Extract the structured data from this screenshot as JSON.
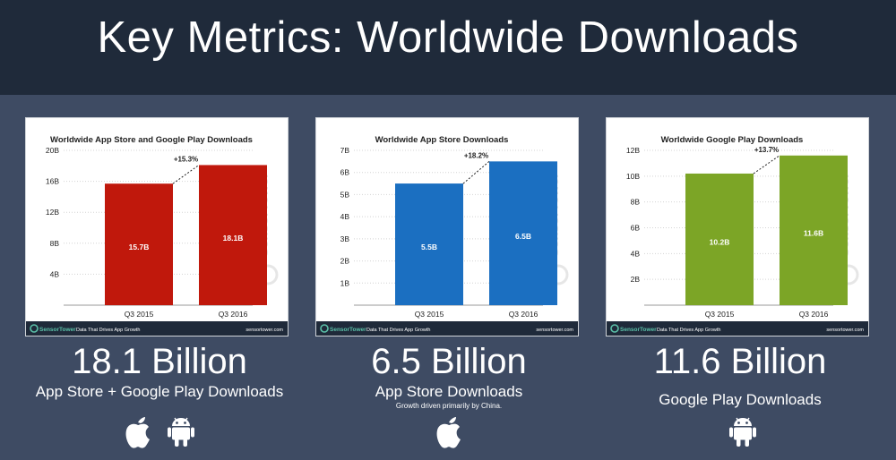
{
  "page_title": "Key Metrics: Worldwide Downloads",
  "brand": {
    "name": "SensorTower",
    "tagline": "Data That Drives App Growth",
    "url": "sensortower.com",
    "watermark": "SensorTower"
  },
  "chart_data": [
    {
      "type": "bar",
      "title": "Worldwide App Store and Google Play Downloads",
      "categories": [
        "Q3 2015",
        "Q3 2016"
      ],
      "values": [
        15.7,
        18.1
      ],
      "value_labels": [
        "15.7B",
        "18.1B"
      ],
      "yticks": [
        "4B",
        "8B",
        "12B",
        "16B",
        "20B"
      ],
      "ytick_values": [
        4,
        8,
        12,
        16,
        20
      ],
      "ylim": [
        0,
        20
      ],
      "growth_label": "+15.3%",
      "color": "#c0180c",
      "grid": true
    },
    {
      "type": "bar",
      "title": "Worldwide App Store Downloads",
      "categories": [
        "Q3 2015",
        "Q3 2016"
      ],
      "values": [
        5.5,
        6.5
      ],
      "value_labels": [
        "5.5B",
        "6.5B"
      ],
      "yticks": [
        "1B",
        "2B",
        "3B",
        "4B",
        "5B",
        "6B",
        "7B"
      ],
      "ytick_values": [
        1,
        2,
        3,
        4,
        5,
        6,
        7
      ],
      "ylim": [
        0,
        7
      ],
      "growth_label": "+18.2%",
      "color": "#1b6fc1",
      "grid": true
    },
    {
      "type": "bar",
      "title": "Worldwide Google Play Downloads",
      "categories": [
        "Q3 2015",
        "Q3 2016"
      ],
      "values": [
        10.2,
        11.6
      ],
      "value_labels": [
        "10.2B",
        "11.6B"
      ],
      "yticks": [
        "2B",
        "4B",
        "6B",
        "8B",
        "10B",
        "12B"
      ],
      "ytick_values": [
        2,
        4,
        6,
        8,
        10,
        12
      ],
      "ylim": [
        0,
        12
      ],
      "growth_label": "+13.7%",
      "color": "#7ca526",
      "grid": true
    }
  ],
  "metrics": [
    {
      "value": "18.1 Billion",
      "label": "App Store + Google Play Downloads",
      "note": "",
      "icons": [
        "apple-icon",
        "android-icon"
      ]
    },
    {
      "value": "6.5 Billion",
      "label": "App Store Downloads",
      "note": "Growth driven primarily by China.",
      "icons": [
        "apple-icon"
      ]
    },
    {
      "value": "11.6 Billion",
      "label": "Google Play Downloads",
      "note": "",
      "icons": [
        "android-icon"
      ]
    }
  ]
}
